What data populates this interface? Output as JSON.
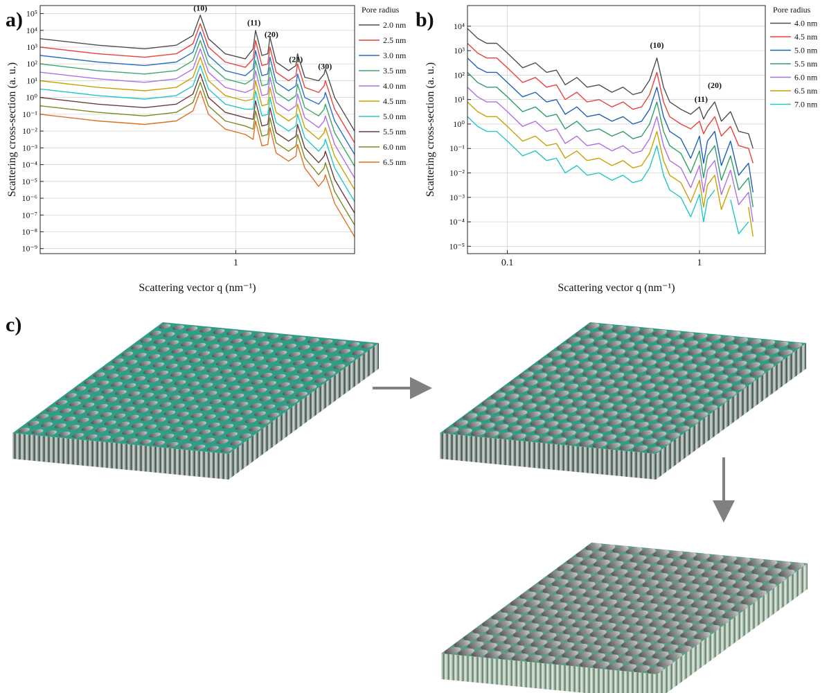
{
  "chart_data": [
    {
      "type": "line",
      "panel_label": "a)",
      "xlabel": "Scattering vector q (nm⁻¹)",
      "ylabel": "Scattering cross-section (a. u.)",
      "log_x": true,
      "log_y": true,
      "grid": true,
      "legend_title": "Pore radius",
      "legend": "outside-right",
      "xlim": [
        0.14,
        3.3
      ],
      "ylim": [
        5e-10,
        300000
      ],
      "xticks": [
        1
      ],
      "yticks": [
        {
          "value": 1e-09,
          "label": "10⁻⁹"
        },
        {
          "value": 1e-08,
          "label": "10⁻⁸"
        },
        {
          "value": 1e-07,
          "label": "10⁻⁷"
        },
        {
          "value": 1e-06,
          "label": "10⁻⁶"
        },
        {
          "value": 1e-05,
          "label": "10⁻⁵"
        },
        {
          "value": 0.0001,
          "label": "10⁻⁴"
        },
        {
          "value": 0.001,
          "label": "10⁻³"
        },
        {
          "value": 0.01,
          "label": "10⁻²"
        },
        {
          "value": 0.1,
          "label": "10⁻¹"
        },
        {
          "value": 1,
          "label": "10⁰"
        },
        {
          "value": 10,
          "label": "10¹"
        },
        {
          "value": 100,
          "label": "10²"
        },
        {
          "value": 1000,
          "label": "10³"
        },
        {
          "value": 10000,
          "label": "10⁴"
        },
        {
          "value": 100000,
          "label": "10⁵"
        }
      ],
      "annotations": [
        {
          "text": "(10)",
          "x": 0.7,
          "y": 150000
        },
        {
          "text": "(11)",
          "x": 1.2,
          "y": 20000
        },
        {
          "text": "(20)",
          "x": 1.43,
          "y": 4000
        },
        {
          "text": "(21)",
          "x": 1.83,
          "y": 130
        },
        {
          "text": "(30)",
          "x": 2.45,
          "y": 50
        }
      ],
      "x": [
        0.14,
        0.25,
        0.4,
        0.55,
        0.65,
        0.7,
        0.76,
        0.9,
        1.1,
        1.19,
        1.22,
        1.3,
        1.38,
        1.41,
        1.5,
        1.7,
        1.83,
        1.86,
        2.0,
        2.3,
        2.43,
        2.46,
        2.7,
        3.3
      ],
      "series": [
        {
          "name": "2.0 nm",
          "color": "#4d4d4d",
          "values": [
            3200,
            1300,
            800,
            1300,
            5000,
            80000,
            3200,
            400,
            200,
            800,
            10000,
            320,
            400,
            4000,
            130,
            40,
            80,
            400,
            16,
            10,
            25,
            50,
            1,
            0.01
          ]
        },
        {
          "name": "2.5 nm",
          "color": "#e8413c",
          "values": [
            1000,
            400,
            250,
            400,
            1600,
            25000,
            1000,
            130,
            63,
            200,
            2500,
            80,
            100,
            1000,
            32,
            10,
            20,
            100,
            4,
            2,
            5,
            10,
            0.2,
            0.002
          ]
        },
        {
          "name": "3.0 nm",
          "color": "#2a6fc4",
          "values": [
            320,
            130,
            80,
            130,
            500,
            8000,
            320,
            40,
            20,
            50,
            630,
            20,
            25,
            250,
            8,
            2.5,
            5,
            25,
            1,
            0.4,
            1,
            2,
            0.04,
            0.0004
          ]
        },
        {
          "name": "3.5 nm",
          "color": "#3aa86a",
          "values": [
            100,
            40,
            25,
            40,
            160,
            2500,
            100,
            13,
            6.3,
            13,
            160,
            5,
            6.3,
            63,
            2,
            0.63,
            1.3,
            6.3,
            0.25,
            0.08,
            0.2,
            0.4,
            0.008,
            8e-05
          ]
        },
        {
          "name": "4.0 nm",
          "color": "#b070e0",
          "values": [
            32,
            13,
            8,
            13,
            50,
            800,
            32,
            4,
            2,
            3.2,
            40,
            1.3,
            1.6,
            16,
            0.5,
            0.16,
            0.32,
            1.6,
            0.063,
            0.016,
            0.04,
            0.08,
            0.0016,
            1.6e-05
          ]
        },
        {
          "name": "4.5 nm",
          "color": "#c9a100",
          "values": [
            10,
            4,
            2.5,
            4,
            16,
            250,
            10,
            1.3,
            0.63,
            0.8,
            10,
            0.32,
            0.4,
            4,
            0.13,
            0.04,
            0.08,
            0.4,
            0.016,
            0.0032,
            0.008,
            0.016,
            0.00032,
            3.2e-06
          ]
        },
        {
          "name": "5.0 nm",
          "color": "#22c7c7",
          "values": [
            3.2,
            1.3,
            0.8,
            1.3,
            5,
            80,
            3.2,
            0.4,
            0.2,
            0.2,
            2.5,
            0.08,
            0.1,
            1,
            0.032,
            0.01,
            0.02,
            0.1,
            0.004,
            0.00063,
            0.0016,
            0.0032,
            6.3e-05,
            6.3e-07
          ]
        },
        {
          "name": "5.5 nm",
          "color": "#6b3a3a",
          "values": [
            1,
            0.4,
            0.25,
            0.4,
            1.6,
            25,
            1,
            0.13,
            0.063,
            0.05,
            0.63,
            0.02,
            0.025,
            0.25,
            0.008,
            0.0025,
            0.005,
            0.025,
            0.001,
            0.00013,
            0.00032,
            0.00063,
            1.3e-05,
            1.3e-07
          ]
        },
        {
          "name": "6.0 nm",
          "color": "#7a8a20",
          "values": [
            0.32,
            0.13,
            0.08,
            0.13,
            0.5,
            8,
            0.32,
            0.04,
            0.02,
            0.013,
            0.16,
            0.005,
            0.0063,
            0.063,
            0.002,
            0.00063,
            0.0013,
            0.0063,
            0.00025,
            2.5e-05,
            6.3e-05,
            0.00013,
            2.5e-06,
            2.5e-08
          ]
        },
        {
          "name": "6.5 nm",
          "color": "#e07020",
          "values": [
            0.1,
            0.04,
            0.025,
            0.04,
            0.16,
            2.5,
            0.1,
            0.013,
            0.0063,
            0.0032,
            0.04,
            0.0013,
            0.0016,
            0.016,
            0.0005,
            0.00016,
            0.00032,
            0.0016,
            6.3e-05,
            5e-06,
            1.3e-05,
            2.5e-05,
            5e-07,
            5e-09
          ]
        }
      ]
    },
    {
      "type": "line",
      "panel_label": "b)",
      "xlabel": "Scattering vector q (nm⁻¹)",
      "ylabel": "Scattering cross-section (a. u.)",
      "log_x": true,
      "log_y": true,
      "grid": true,
      "legend_title": "Pore radius",
      "legend": "outside-right",
      "xlim": [
        0.062,
        2.2
      ],
      "ylim": [
        5e-06,
        70000
      ],
      "xticks": [
        0.1,
        1
      ],
      "yticks": [
        {
          "value": 1e-05,
          "label": "10⁻⁵"
        },
        {
          "value": 0.0001,
          "label": "10⁻⁴"
        },
        {
          "value": 0.001,
          "label": "10⁻³"
        },
        {
          "value": 0.01,
          "label": "10⁻²"
        },
        {
          "value": 0.1,
          "label": "10⁻¹"
        },
        {
          "value": 1,
          "label": "10⁰"
        },
        {
          "value": 10,
          "label": "10¹"
        },
        {
          "value": 100,
          "label": "10²"
        },
        {
          "value": 1000,
          "label": "10³"
        },
        {
          "value": 10000,
          "label": "10⁴"
        }
      ],
      "annotations": [
        {
          "text": "(10)",
          "x": 0.6,
          "y": 1300
        },
        {
          "text": "(11)",
          "x": 1.02,
          "y": 8
        },
        {
          "text": "(20)",
          "x": 1.2,
          "y": 30
        }
      ],
      "x": [
        0.062,
        0.07,
        0.078,
        0.088,
        0.1,
        0.12,
        0.14,
        0.16,
        0.18,
        0.2,
        0.23,
        0.26,
        0.3,
        0.35,
        0.4,
        0.45,
        0.5,
        0.55,
        0.6,
        0.65,
        0.7,
        0.8,
        0.9,
        1.0,
        1.05,
        1.1,
        1.2,
        1.3,
        1.45,
        1.6,
        1.8,
        1.9
      ],
      "series": [
        {
          "name": "4.0 nm",
          "color": "#4d4d4d",
          "values": [
            8000,
            3200,
            2000,
            2000,
            800,
            200,
            320,
            130,
            160,
            40,
            80,
            32,
            40,
            20,
            32,
            16,
            20,
            63,
            500,
            32,
            8,
            4,
            2.5,
            5,
            1.6,
            3.2,
            8,
            1.3,
            3.2,
            0.5,
            0.4,
            0.1
          ]
        },
        {
          "name": "4.5 nm",
          "color": "#e8413c",
          "values": [
            2000,
            800,
            500,
            500,
            200,
            50,
            80,
            32,
            40,
            10,
            20,
            8,
            10,
            5,
            8,
            4,
            5,
            16,
            130,
            8,
            2,
            1,
            0.63,
            1.3,
            0.4,
            0.8,
            2,
            0.32,
            0.8,
            0.13,
            0.1,
            0.025
          ]
        },
        {
          "name": "5.0 nm",
          "color": "#1f5fb8",
          "values": [
            500,
            200,
            130,
            130,
            50,
            13,
            20,
            8,
            10,
            2.5,
            5,
            2,
            2.5,
            1.3,
            2,
            1,
            1.3,
            4,
            32,
            2,
            0.5,
            0.25,
            0.04,
            0.32,
            0.025,
            0.2,
            0.5,
            0.02,
            0.2,
            0.008,
            0.025,
            0.0016
          ]
        },
        {
          "name": "5.5 nm",
          "color": "#2e9e66",
          "values": [
            130,
            50,
            32,
            32,
            13,
            3.2,
            5,
            2,
            2.5,
            0.63,
            1.3,
            0.5,
            0.63,
            0.32,
            0.5,
            0.25,
            0.32,
            1,
            8,
            0.5,
            0.13,
            0.063,
            0.01,
            0.08,
            0.0063,
            0.05,
            0.13,
            0.005,
            0.05,
            0.002,
            0.0063,
            0.0004
          ]
        },
        {
          "name": "6.0 nm",
          "color": "#b06ee0",
          "values": [
            32,
            13,
            8,
            8,
            3.2,
            0.8,
            1.3,
            0.5,
            0.63,
            0.16,
            0.32,
            0.13,
            0.16,
            0.08,
            0.13,
            0.063,
            0.08,
            0.25,
            2,
            0.13,
            0.032,
            0.016,
            0.0025,
            0.02,
            0.0016,
            0.013,
            0.032,
            0.0013,
            0.013,
            0.0005,
            0.0016,
            0.0001
          ]
        },
        {
          "name": "6.5 nm",
          "color": "#c9a100",
          "values": [
            8,
            3.2,
            2,
            2,
            0.8,
            0.2,
            0.32,
            0.13,
            0.16,
            0.04,
            0.08,
            0.032,
            0.04,
            0.02,
            0.032,
            0.016,
            0.02,
            0.063,
            0.5,
            0.032,
            0.008,
            0.004,
            0.00063,
            0.005,
            0.0004,
            0.0032,
            0.008,
            0.00032,
            0.0032,
            null,
            0.0004,
            2.5e-05
          ]
        },
        {
          "name": "7.0 nm",
          "color": "#22c7c7",
          "values": [
            2,
            0.8,
            0.5,
            0.5,
            0.2,
            0.05,
            0.08,
            0.032,
            0.04,
            0.01,
            0.02,
            0.008,
            0.01,
            0.005,
            0.008,
            0.004,
            0.005,
            0.016,
            0.13,
            0.008,
            0.002,
            0.001,
            0.00016,
            0.0013,
            0.0001,
            0.0008,
            0.002,
            null,
            0.0008,
            3.2e-05,
            0.0001,
            null
          ]
        }
      ]
    }
  ],
  "illustration": {
    "panel_label": "c)"
  }
}
